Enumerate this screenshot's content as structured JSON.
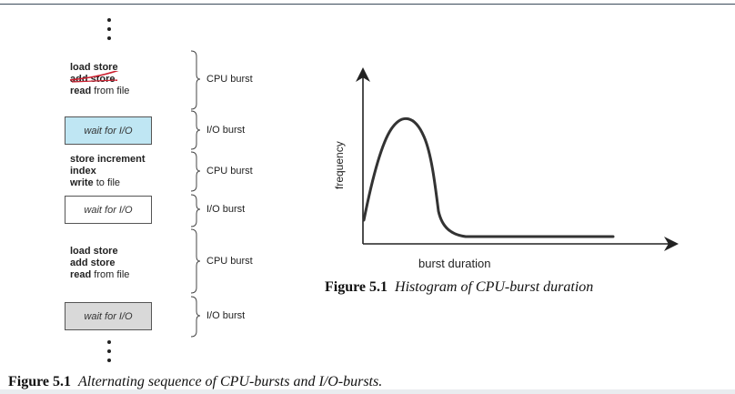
{
  "diagram": {
    "sequence": [
      {
        "type": "code",
        "lines": [
          {
            "bold": "load store",
            "rest": ""
          },
          {
            "bold": "add store",
            "rest": ""
          },
          {
            "bold": "read",
            "rest": " from file"
          }
        ],
        "burst": "CPU burst"
      },
      {
        "type": "wait",
        "label": "wait for I/O",
        "fill": "#bfe6f3",
        "burst": "I/O burst"
      },
      {
        "type": "code",
        "lines": [
          {
            "bold": "store increment",
            "rest": ""
          },
          {
            "bold": "index",
            "rest": ""
          },
          {
            "bold": "write",
            "rest": " to file"
          }
        ],
        "burst": "CPU burst"
      },
      {
        "type": "wait",
        "label": "wait for I/O",
        "fill": "#ffffff",
        "burst": "I/O burst"
      },
      {
        "type": "code",
        "lines": [
          {
            "bold": "load store",
            "rest": ""
          },
          {
            "bold": "add store",
            "rest": ""
          },
          {
            "bold": "read",
            "rest": " from file"
          }
        ],
        "burst": "CPU burst"
      },
      {
        "type": "wait",
        "label": "wait for I/O",
        "fill": "#d9d9d9",
        "burst": "I/O burst"
      }
    ],
    "left_caption": {
      "number": "Figure 5.1",
      "text": "Alternating sequence of CPU-bursts and I/O-bursts."
    },
    "colors": {
      "strike": "#cc1f2f",
      "io_highlight": "#bfe6f3",
      "io_gray": "#d9d9d9"
    }
  },
  "chart_data": {
    "type": "line",
    "title": "",
    "xlabel": "burst duration",
    "ylabel": "frequency",
    "x_ticks": [],
    "y_ticks": [],
    "curve": "single right-skewed peak near short burst durations, long flat tail",
    "caption": {
      "number": "Figure 5.1",
      "text": "Histogram of CPU-burst duration"
    }
  }
}
